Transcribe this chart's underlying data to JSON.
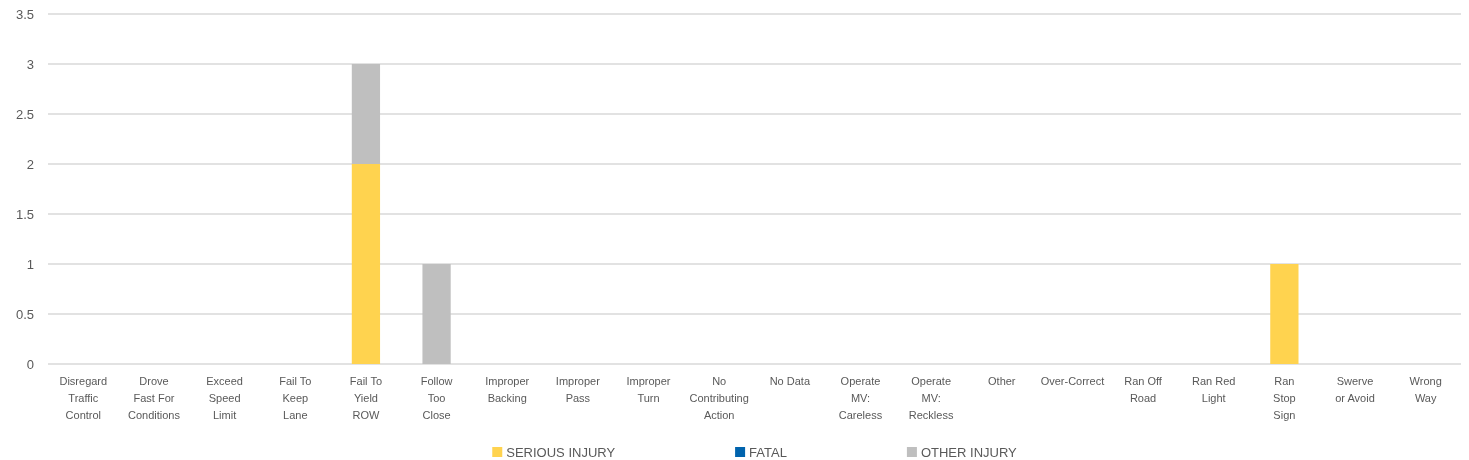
{
  "chart_data": {
    "type": "bar",
    "stacked": true,
    "categories": [
      "Disregard Traffic Control",
      "Drove Fast For Conditions",
      "Exceed Speed Limit",
      "Fail To Keep Lane",
      "Fail To Yield ROW",
      "Follow Too Close",
      "Improper Backing",
      "Improper Pass",
      "Improper Turn",
      "No Contributing Action",
      "No Data",
      "Operate MV: Careless",
      "Operate MV: Reckless",
      "Other",
      "Over-Correct",
      "Ran Off Road",
      "Ran Red Light",
      "Ran Stop Sign",
      "Swerve or Avoid",
      "Wrong Way"
    ],
    "series": [
      {
        "name": "SERIOUS INJURY",
        "color": "#ffd34f",
        "values": [
          0,
          0,
          0,
          0,
          2,
          0,
          0,
          0,
          0,
          0,
          0,
          0,
          0,
          0,
          0,
          0,
          0,
          1,
          0,
          0
        ]
      },
      {
        "name": "FATAL",
        "color": "#0063ad",
        "values": [
          0,
          0,
          0,
          0,
          0,
          0,
          0,
          0,
          0,
          0,
          0,
          0,
          0,
          0,
          0,
          0,
          0,
          0,
          0,
          0
        ]
      },
      {
        "name": "OTHER INJURY",
        "color": "#bfbfbf",
        "values": [
          0,
          0,
          0,
          0,
          1,
          1,
          0,
          0,
          0,
          0,
          0,
          0,
          0,
          0,
          0,
          0,
          0,
          0,
          0,
          0
        ]
      }
    ],
    "ylim": [
      0,
      3.5
    ],
    "yticks": [
      0,
      0.5,
      1,
      1.5,
      2,
      2.5,
      3,
      3.5
    ],
    "grid": "y",
    "legend": "bottom"
  }
}
